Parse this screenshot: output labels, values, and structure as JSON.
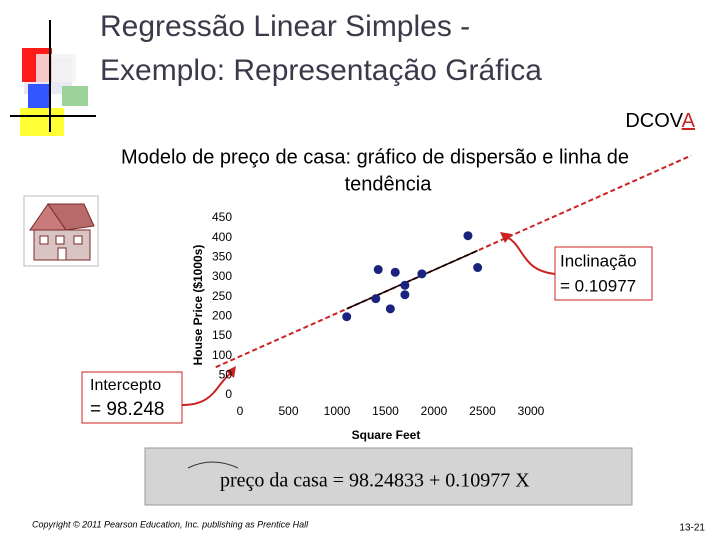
{
  "slide": {
    "title": [
      "Regressão Linear Simples -",
      "Exemplo: Representação Gráfica"
    ],
    "dcova_main": "DCOV",
    "dcova_highlight": "A",
    "subtitle": [
      "Modelo de preço de casa: gráfico de dispersão e linha de",
      "tendência"
    ],
    "slope_callout": [
      "Inclinação",
      "= 0.10977"
    ],
    "intercept_callout": [
      "Intercepto",
      "= 98.248"
    ],
    "formula": "preço da casa = 98.24833 + 0.10977 X",
    "copyright": "Copyright © 2011 Pearson Education, Inc. publishing as Prentice Hall",
    "page": "13-21"
  },
  "chart_data": {
    "type": "scatter",
    "x": [
      1400,
      1600,
      1700,
      1875,
      1100,
      1550,
      2350,
      2450,
      1425,
      1700
    ],
    "values": [
      245,
      312,
      279,
      308,
      199,
      219,
      405,
      324,
      319,
      255
    ],
    "color": "#1a237e",
    "xlim": [
      0,
      3000
    ],
    "ylim": [
      0,
      450
    ],
    "xticks": [
      0,
      500,
      1000,
      1500,
      2000,
      2500,
      3000
    ],
    "yticks": [
      0,
      50,
      100,
      150,
      200,
      250,
      300,
      350,
      400,
      450
    ],
    "xlabel": "Square Feet",
    "ylabel": "House Price ($1000s)",
    "trendline": {
      "intercept": 98.24833,
      "slope": 0.10977
    }
  }
}
